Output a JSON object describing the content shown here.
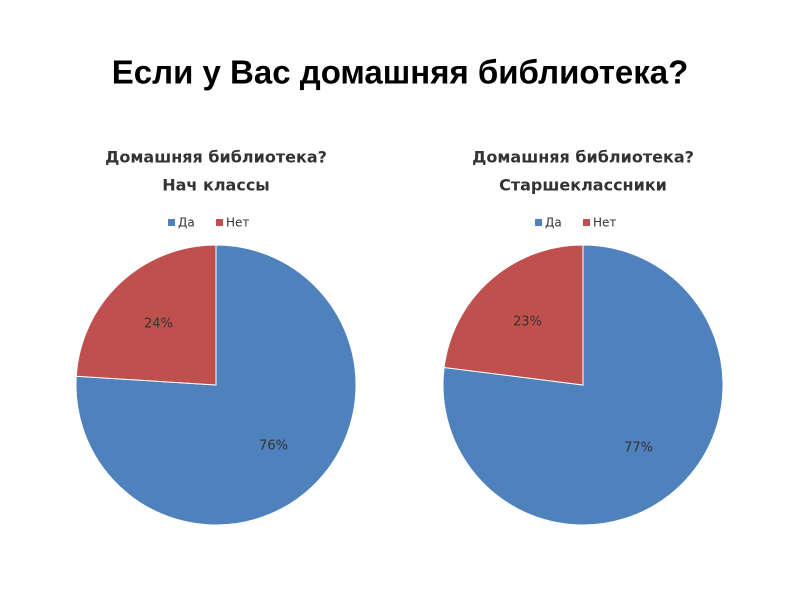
{
  "title": "Если у Вас домашняя библиотека?",
  "chart_data": [
    {
      "type": "pie",
      "title": "Домашняя библиотека?",
      "subtitle": "Нач классы",
      "categories": [
        "Да",
        "Нет"
      ],
      "values": [
        76,
        24
      ],
      "value_labels": [
        "76%",
        "24%"
      ],
      "colors": [
        "#4f81bd",
        "#c0504d"
      ],
      "legend": "top"
    },
    {
      "type": "pie",
      "title": "Домашняя библиотека?",
      "subtitle": "Старшеклассники",
      "categories": [
        "Да",
        "Нет"
      ],
      "values": [
        77,
        23
      ],
      "value_labels": [
        "77%",
        "23%"
      ],
      "colors": [
        "#4f81bd",
        "#c0504d"
      ],
      "legend": "top"
    }
  ]
}
